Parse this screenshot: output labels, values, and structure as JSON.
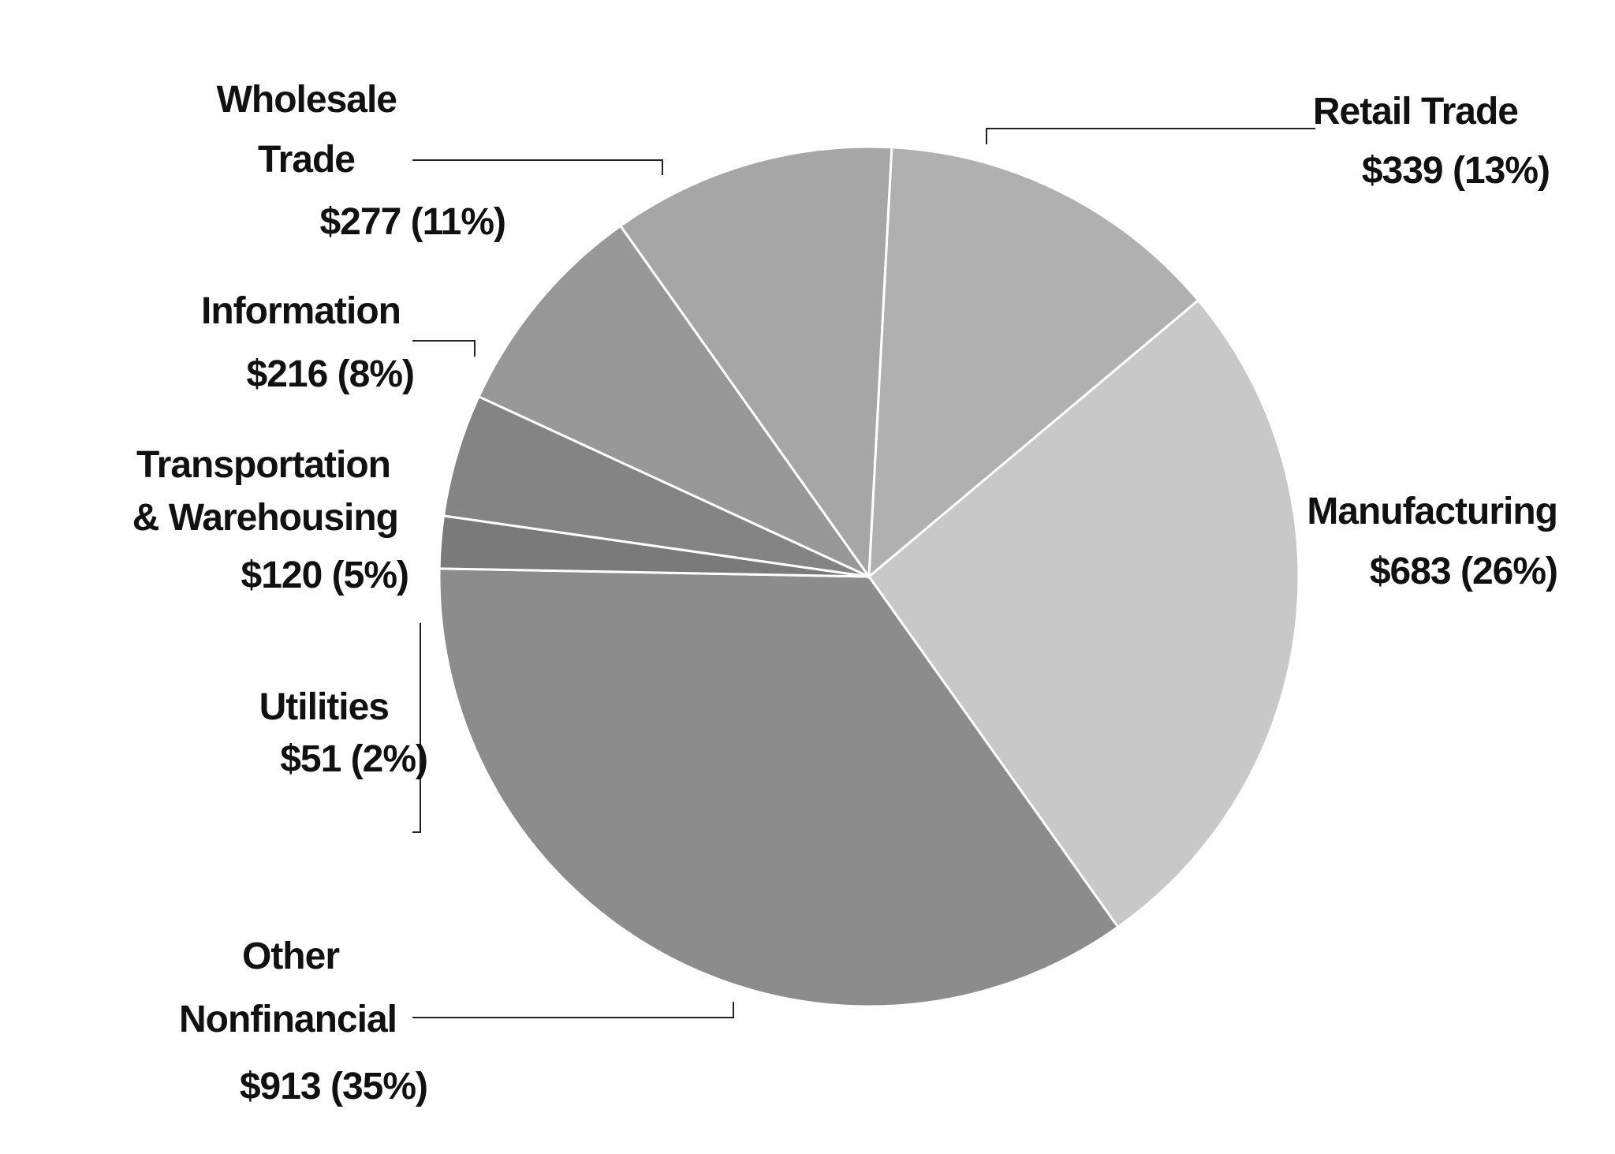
{
  "chart_data": {
    "type": "pie",
    "title": "",
    "slices": [
      {
        "label": "Manufacturing",
        "value": 683,
        "percent": 26,
        "value_text": "$683 (26%)",
        "color": "#c8c8c8"
      },
      {
        "label": "Other Nonfinancial",
        "value": 913,
        "percent": 35,
        "value_text": "$913 (35%)",
        "color": "#8c8c8c"
      },
      {
        "label": "Utilities",
        "value": 51,
        "percent": 2,
        "value_text": "$51 (2%)",
        "color": "#7a7a7a"
      },
      {
        "label": "Transportation & Warehousing",
        "value": 120,
        "percent": 5,
        "value_text": "$120 (5%)",
        "color": "#848484"
      },
      {
        "label": "Information",
        "value": 216,
        "percent": 8,
        "value_text": "$216 (8%)",
        "color": "#989898"
      },
      {
        "label": "Wholesale Trade",
        "value": 277,
        "percent": 11,
        "value_text": "$277 (11%)",
        "color": "#a6a6a6"
      },
      {
        "label": "Retail Trade",
        "value": 339,
        "percent": 13,
        "value_text": "$339 (13%)",
        "color": "#b0b0b0"
      }
    ],
    "label_lines": {
      "manufacturing": [
        "Manufacturing"
      ],
      "other": [
        "Other",
        "Nonfinancial"
      ],
      "utilities": [
        "Utilities"
      ],
      "transportation": [
        "Transportation",
        "& Warehousing"
      ],
      "information": [
        "Information"
      ],
      "wholesale": [
        "Wholesale",
        "Trade"
      ],
      "retail": [
        "Retail Trade"
      ]
    }
  }
}
